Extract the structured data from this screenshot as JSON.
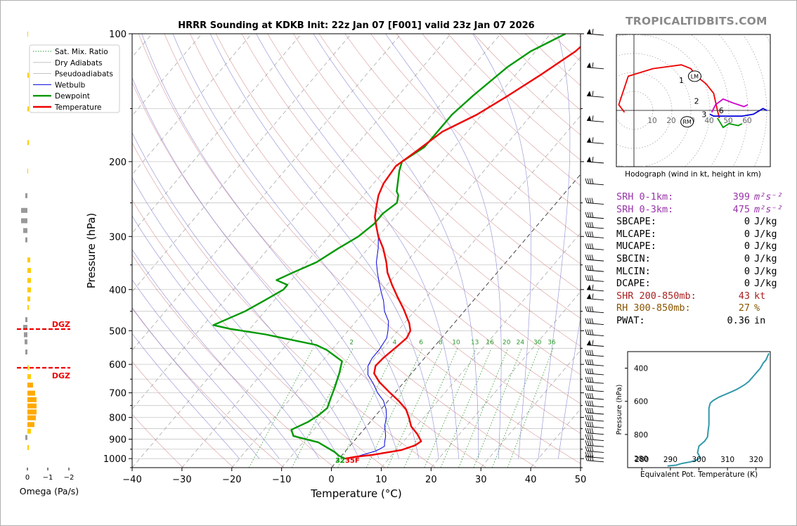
{
  "brand": "TROPICALTIDBITS.COM",
  "chart_data": [
    {
      "type": "line",
      "title": "HRRR Sounding at KDKB Init: 22z Jan 07 [F001] valid 23z Jan 07 2026",
      "xlabel": "Temperature (°C)",
      "ylabel": "Pressure (hPa)",
      "xlim": [
        -40,
        50
      ],
      "ylim": [
        1050,
        100
      ],
      "y_scale": "log",
      "x_ticks": [
        -40,
        -30,
        -20,
        -10,
        0,
        10,
        20,
        30,
        40,
        50
      ],
      "y_ticks": [
        100,
        200,
        300,
        400,
        500,
        600,
        700,
        800,
        900,
        1000
      ],
      "legend": [
        "Sat. Mix. Ratio",
        "Dry Adiabats",
        "Pseudoadiabats",
        "Wetbulb",
        "Dewpoint",
        "Temperature"
      ],
      "mixing_ratio_labels": [
        "1",
        "2",
        "4",
        "6",
        "8",
        "10",
        "13",
        "16",
        "20",
        "24",
        "30",
        "36"
      ],
      "surface_labels": [
        "32",
        "35F"
      ],
      "colors": {
        "temperature": "#ee0000",
        "dewpoint": "#009900",
        "wetbulb": "#0000dd",
        "mixratio": "#2a9a2a",
        "dry": "#d08080",
        "moist": "#7070cc"
      },
      "series": [
        {
          "name": "Temperature",
          "points": [
            [
              1.2,
              1000
            ],
            [
              3,
              990
            ],
            [
              6,
              980
            ],
            [
              11,
              955
            ],
            [
              13,
              930
            ],
            [
              13.5,
              910
            ],
            [
              11.5,
              875
            ],
            [
              9,
              840
            ],
            [
              7,
              800
            ],
            [
              5,
              765
            ],
            [
              2,
              730
            ],
            [
              -1.5,
              695
            ],
            [
              -5,
              660
            ],
            [
              -7.5,
              630
            ],
            [
              -8.5,
              605
            ],
            [
              -8.3,
              580
            ],
            [
              -7.5,
              545
            ],
            [
              -7,
              520
            ],
            [
              -7.5,
              500
            ],
            [
              -9,
              480
            ],
            [
              -12.5,
              445
            ],
            [
              -16,
              415
            ],
            [
              -19,
              390
            ],
            [
              -22,
              365
            ],
            [
              -24,
              345
            ],
            [
              -27,
              320
            ],
            [
              -30,
              300
            ],
            [
              -32,
              285
            ],
            [
              -34,
              270
            ],
            [
              -35.5,
              255
            ],
            [
              -37,
              240
            ],
            [
              -38,
              225
            ],
            [
              -38.5,
              205
            ],
            [
              -37,
              190
            ],
            [
              -35,
              170
            ],
            [
              -31,
              155
            ],
            [
              -28,
              140
            ],
            [
              -25,
              125
            ],
            [
              -22,
              110
            ],
            [
              -21,
              100
            ]
          ]
        },
        {
          "name": "Dewpoint",
          "points": [
            [
              1.2,
              1000
            ],
            [
              -0.5,
              985
            ],
            [
              -2,
              965
            ],
            [
              -7,
              915
            ],
            [
              -13,
              885
            ],
            [
              -14.5,
              855
            ],
            [
              -12.5,
              820
            ],
            [
              -11.5,
              790
            ],
            [
              -11,
              760
            ],
            [
              -12,
              720
            ],
            [
              -13,
              680
            ],
            [
              -14.5,
              630
            ],
            [
              -16,
              590
            ],
            [
              -21,
              555
            ],
            [
              -24,
              540
            ],
            [
              -36,
              510
            ],
            [
              -44,
              495
            ],
            [
              -48,
              485
            ],
            [
              -44,
              450
            ],
            [
              -42,
              425
            ],
            [
              -40,
              400
            ],
            [
              -40,
              390
            ],
            [
              -43,
              380
            ],
            [
              -41,
              365
            ],
            [
              -38,
              345
            ],
            [
              -36,
              320
            ],
            [
              -34,
              300
            ],
            [
              -33,
              280
            ],
            [
              -33,
              265
            ],
            [
              -32,
              250
            ],
            [
              -33,
              240
            ],
            [
              -34,
              235
            ],
            [
              -37,
              210
            ],
            [
              -38,
              200
            ],
            [
              -36,
              185
            ],
            [
              -36,
              170
            ],
            [
              -36,
              155
            ],
            [
              -35,
              140
            ],
            [
              -33,
              120
            ],
            [
              -31,
              110
            ],
            [
              -27,
              100
            ]
          ]
        },
        {
          "name": "Wetbulb",
          "points": [
            [
              1.2,
              1000
            ],
            [
              3,
              990
            ],
            [
              4.5,
              975
            ],
            [
              6,
              960
            ],
            [
              6.5,
              950
            ],
            [
              7,
              935
            ],
            [
              6.5,
              920
            ],
            [
              5.5,
              885
            ],
            [
              4.5,
              860
            ],
            [
              3.5,
              835
            ],
            [
              2.5,
              800
            ],
            [
              1,
              765
            ],
            [
              -1,
              730
            ],
            [
              -3.5,
              700
            ],
            [
              -6,
              665
            ],
            [
              -8.5,
              635
            ],
            [
              -10,
              605
            ],
            [
              -10.5,
              580
            ],
            [
              -10.5,
              555
            ],
            [
              -11,
              520
            ],
            [
              -12,
              500
            ],
            [
              -13.5,
              475
            ],
            [
              -16,
              450
            ],
            [
              -18,
              425
            ],
            [
              -20,
              405
            ],
            [
              -22,
              385
            ],
            [
              -24,
              365
            ],
            [
              -26,
              345
            ],
            [
              -28,
              320
            ],
            [
              -30,
              300
            ],
            [
              -32,
              285
            ],
            [
              -34,
              270
            ],
            [
              -35.5,
              255
            ],
            [
              -37,
              240
            ],
            [
              -38,
              225
            ],
            [
              -38.5,
              205
            ],
            [
              -37,
              190
            ],
            [
              -35,
              170
            ],
            [
              -31,
              155
            ],
            [
              -28,
              140
            ],
            [
              -25,
              125
            ],
            [
              -22,
              110
            ],
            [
              -21,
              100
            ]
          ]
        }
      ]
    },
    {
      "type": "line",
      "title": "Hodograph (wind in kt, height in km)",
      "ring_labels": [
        "10",
        "20",
        "30",
        "40",
        "50",
        "60"
      ],
      "height_markers": [
        "1",
        "2",
        "3",
        "6"
      ],
      "storm_motion": [
        "LM",
        "RM"
      ],
      "series": [
        {
          "name": "0-1 km",
          "color": "#ee0000",
          "points": [
            [
              -5,
              -1
            ],
            [
              -8,
              3
            ],
            [
              -3,
              18
            ],
            [
              10,
              22
            ],
            [
              25,
              24
            ],
            [
              30,
              22
            ],
            [
              33,
              18
            ],
            [
              38,
              14
            ],
            [
              42,
              9
            ],
            [
              44,
              0
            ],
            [
              45,
              -4
            ]
          ]
        },
        {
          "name": "1-3 km",
          "color": "#cc00cc",
          "points": [
            [
              41,
              -1
            ],
            [
              43,
              3
            ],
            [
              47,
              6
            ],
            [
              52,
              4
            ],
            [
              58,
              2
            ],
            [
              60,
              3
            ]
          ]
        },
        {
          "name": "3-6 km",
          "color": "#009900",
          "points": [
            [
              44,
              -4
            ],
            [
              47,
              -9
            ],
            [
              50,
              -7
            ],
            [
              55,
              -8
            ],
            [
              57,
              -7
            ]
          ]
        },
        {
          "name": "6-9 km",
          "color": "#0000dd",
          "points": [
            [
              40,
              -2
            ],
            [
              42,
              -3
            ],
            [
              46,
              -3
            ],
            [
              52,
              -3
            ],
            [
              57,
              -3
            ],
            [
              63,
              -2
            ],
            [
              68,
              1
            ],
            [
              70,
              0
            ]
          ]
        }
      ]
    },
    {
      "type": "line",
      "ylabel": "Pressure (hPa)",
      "xlabel": "Equivalent Pot. Temperature (K)",
      "xlim": [
        275,
        325
      ],
      "ylim": [
        1000,
        300
      ],
      "x_ticks": [
        280,
        290,
        300,
        310,
        320
      ],
      "y_ticks": [
        400,
        600,
        800
      ],
      "bottom_label": "280",
      "series": [
        {
          "name": "Theta-e",
          "color": "#3399aa",
          "points": [
            [
              289,
              990
            ],
            [
              292,
              985
            ],
            [
              294,
              975
            ],
            [
              297,
              965
            ],
            [
              299,
              955
            ],
            [
              300.5,
              940
            ],
            [
              299.5,
              910
            ],
            [
              300,
              870
            ],
            [
              302,
              840
            ],
            [
              303,
              815
            ],
            [
              303.2,
              780
            ],
            [
              303.5,
              740
            ],
            [
              303.5,
              700
            ],
            [
              303.5,
              640
            ],
            [
              304,
              610
            ],
            [
              305,
              595
            ],
            [
              307,
              575
            ],
            [
              309,
              560
            ],
            [
              311,
              545
            ],
            [
              313,
              530
            ],
            [
              314.5,
              515
            ],
            [
              316,
              500
            ],
            [
              317.5,
              480
            ],
            [
              318.5,
              460
            ],
            [
              319.5,
              440
            ],
            [
              320.5,
              420
            ],
            [
              321.5,
              400
            ],
            [
              322.5,
              370
            ],
            [
              323.5,
              350
            ],
            [
              324,
              330
            ],
            [
              324.5,
              310
            ]
          ]
        }
      ]
    },
    {
      "type": "bar",
      "xlabel": "Omega (Pa/s)",
      "x_ticks": [
        "0",
        "−1",
        "−2"
      ],
      "annotations": [
        "DGZ",
        "DGZ"
      ]
    }
  ],
  "stats": [
    {
      "label": "SRH 0-1km:",
      "value": "399",
      "unit": "m²s⁻²",
      "color": "#9933aa"
    },
    {
      "label": "SRH 0-3km:",
      "value": "475",
      "unit": "m²s⁻²",
      "color": "#9933aa"
    },
    {
      "label": "SBCAPE:",
      "value": "0",
      "unit": "J/kg",
      "color": "#000000"
    },
    {
      "label": "MLCAPE:",
      "value": "0",
      "unit": "J/kg",
      "color": "#000000"
    },
    {
      "label": "MUCAPE:",
      "value": "0",
      "unit": "J/kg",
      "color": "#000000"
    },
    {
      "label": "SBCIN:",
      "value": "0",
      "unit": "J/kg",
      "color": "#000000"
    },
    {
      "label": "MLCIN:",
      "value": "0",
      "unit": "J/kg",
      "color": "#000000"
    },
    {
      "label": "DCAPE:",
      "value": "0",
      "unit": "J/kg",
      "color": "#000000"
    },
    {
      "label": "SHR 200-850mb:",
      "value": "43",
      "unit": "kt",
      "color": "#aa2222"
    },
    {
      "label": "RH 300-850mb:",
      "value": "27",
      "unit": "%",
      "color": "#885500"
    },
    {
      "label": "PWAT:",
      "value": "0.36",
      "unit": "in",
      "color": "#000000"
    }
  ]
}
